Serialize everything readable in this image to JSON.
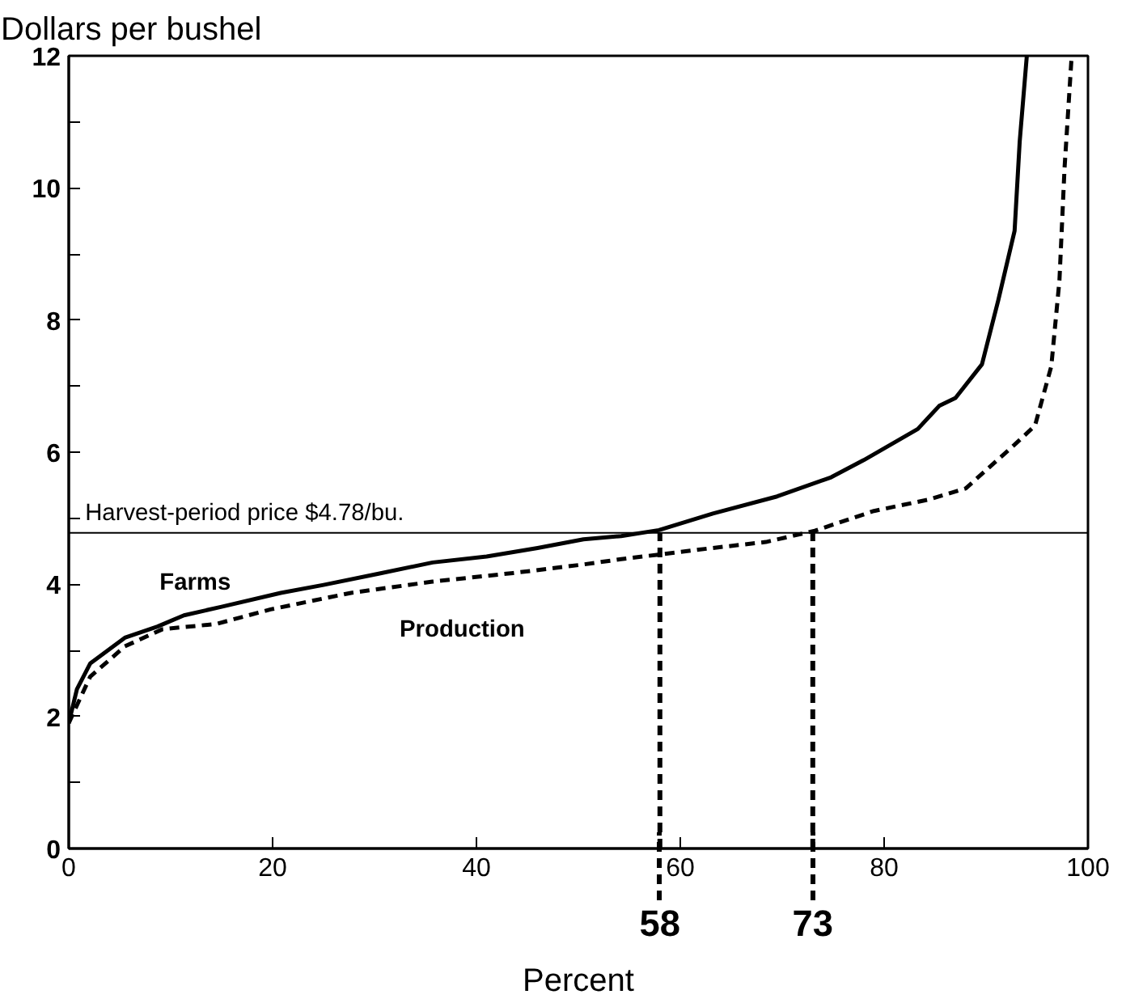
{
  "chart_data": {
    "type": "line",
    "ylabel": "Dollars per bushel",
    "xlabel": "Percent",
    "xlim": [
      0,
      100
    ],
    "xticks": [
      0,
      20,
      40,
      60,
      80,
      100
    ],
    "ylim": [
      0,
      12
    ],
    "yticks": [
      0,
      {
        "value": 1,
        "label": null
      },
      2,
      {
        "value": 3,
        "label": null
      },
      4,
      {
        "value": 5,
        "label": null
      },
      6,
      {
        "value": 7,
        "label": null
      },
      8,
      {
        "value": 9,
        "label": null
      },
      10,
      {
        "value": 11,
        "label": null
      },
      12
    ],
    "grid": false,
    "series": [
      {
        "name": "Farms",
        "color": "#000000",
        "line_style": "solid",
        "x": [
          0,
          0.8,
          2.1,
          5.5,
          8.7,
          11.3,
          15,
          20.8,
          25,
          30.4,
          35.7,
          41,
          46,
          50.5,
          54.2,
          57.9,
          63.2,
          69.5,
          74.8,
          78,
          83.3,
          85.4,
          87,
          89.6,
          91.2,
          92.8,
          93.3,
          94
        ],
        "values": [
          1.9,
          2.41,
          2.8,
          3.19,
          3.36,
          3.53,
          3.66,
          3.87,
          3.99,
          4.16,
          4.33,
          4.42,
          4.55,
          4.68,
          4.73,
          4.82,
          5.07,
          5.33,
          5.62,
          5.88,
          6.35,
          6.7,
          6.82,
          7.33,
          8.3,
          9.35,
          10.7,
          12
        ]
      },
      {
        "name": "Production",
        "color": "#000000",
        "line_style": "dashed",
        "x": [
          0,
          2.1,
          5.5,
          9.2,
          14.5,
          19.8,
          27.7,
          35.7,
          43.6,
          50.5,
          54.2,
          63.2,
          68.4,
          73.2,
          79,
          84.3,
          88,
          92.7,
          94.8,
          96.4,
          97.2,
          97.7,
          98.4
        ],
        "values": [
          1.9,
          2.6,
          3.06,
          3.32,
          3.4,
          3.62,
          3.87,
          4.04,
          4.17,
          4.3,
          4.38,
          4.55,
          4.64,
          4.81,
          5.11,
          5.28,
          5.45,
          6.1,
          6.4,
          7.3,
          8.6,
          10.3,
          12
        ]
      }
    ],
    "ref_lines": [
      {
        "axis": "y",
        "value": 4.78,
        "label": "Harvest-period price $4.78/bu.",
        "color": "#000000",
        "line_style": "solid"
      },
      {
        "axis": "x",
        "value": 58,
        "label": "58",
        "color": "#000000",
        "line_style": "dashed"
      },
      {
        "axis": "x",
        "value": 73,
        "label": "73",
        "color": "#000000",
        "line_style": "dashed"
      }
    ]
  }
}
